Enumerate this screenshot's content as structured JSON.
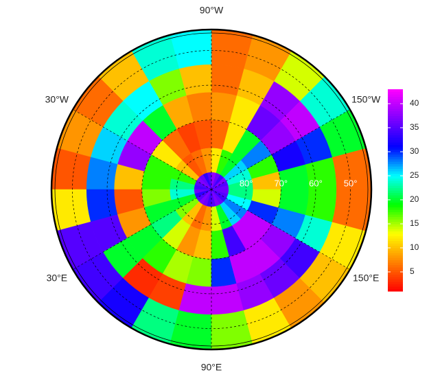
{
  "chart_data": {
    "type": "polar_heatmap",
    "lat_edges": [
      90,
      85,
      78,
      70,
      62,
      54,
      44
    ],
    "lon_edges": [
      -180,
      -165,
      -150,
      -135,
      -120,
      -105,
      -90,
      -75,
      -60,
      -45,
      -30,
      -15,
      0,
      15,
      30,
      45,
      60,
      75,
      90,
      105,
      120,
      135,
      150,
      165,
      180
    ],
    "values": [
      [
        36,
        35,
        37,
        34,
        36,
        38,
        35,
        33,
        36,
        37,
        35,
        34,
        36,
        33,
        35,
        37,
        36,
        34,
        35,
        37,
        36,
        34,
        35,
        36
      ],
      [
        22,
        24,
        26,
        20,
        18,
        12,
        8,
        6,
        5,
        10,
        18,
        22,
        24,
        20,
        16,
        10,
        6,
        8,
        14,
        20,
        26,
        28,
        25,
        22
      ],
      [
        10,
        18,
        28,
        20,
        12,
        6,
        5,
        4,
        6,
        12,
        18,
        18,
        16,
        20,
        22,
        14,
        8,
        10,
        18,
        34,
        40,
        40,
        30,
        14
      ],
      [
        20,
        32,
        38,
        36,
        12,
        8,
        7,
        9,
        20,
        40,
        38,
        10,
        5,
        8,
        20,
        18,
        15,
        16,
        30,
        40,
        40,
        38,
        28,
        20
      ],
      [
        18,
        30,
        40,
        38,
        10,
        6,
        10,
        16,
        25,
        24,
        26,
        28,
        30,
        35,
        20,
        3,
        4,
        40,
        40,
        38,
        36,
        34,
        24,
        18
      ],
      [
        6,
        20,
        24,
        14,
        8,
        6,
        25,
        24,
        10,
        6,
        8,
        5,
        12,
        35,
        34,
        32,
        22,
        20,
        16,
        12,
        8,
        10,
        12,
        6
      ]
    ],
    "lon_labels": [
      {
        "value": -90,
        "label": "90°W"
      },
      {
        "value": -30,
        "label": "30°W"
      },
      {
        "value": -150,
        "label": "150°W"
      },
      {
        "value": 30,
        "label": "30°E"
      },
      {
        "value": 150,
        "label": "150°E"
      },
      {
        "value": 90,
        "label": "90°E"
      }
    ],
    "lat_labels": [
      {
        "value": 80,
        "label": "80°"
      },
      {
        "value": 70,
        "label": "70°"
      },
      {
        "value": 60,
        "label": "60°"
      },
      {
        "value": 50,
        "label": "50°"
      }
    ],
    "colors": [
      "#ff0000",
      "#ff8000",
      "#ffff00",
      "#00ff00",
      "#00ffff",
      "#0000ff",
      "#8000ff",
      "#ff00ff"
    ],
    "clim": [
      1,
      43
    ],
    "cticks": [
      5,
      10,
      15,
      20,
      25,
      30,
      35,
      40
    ]
  }
}
